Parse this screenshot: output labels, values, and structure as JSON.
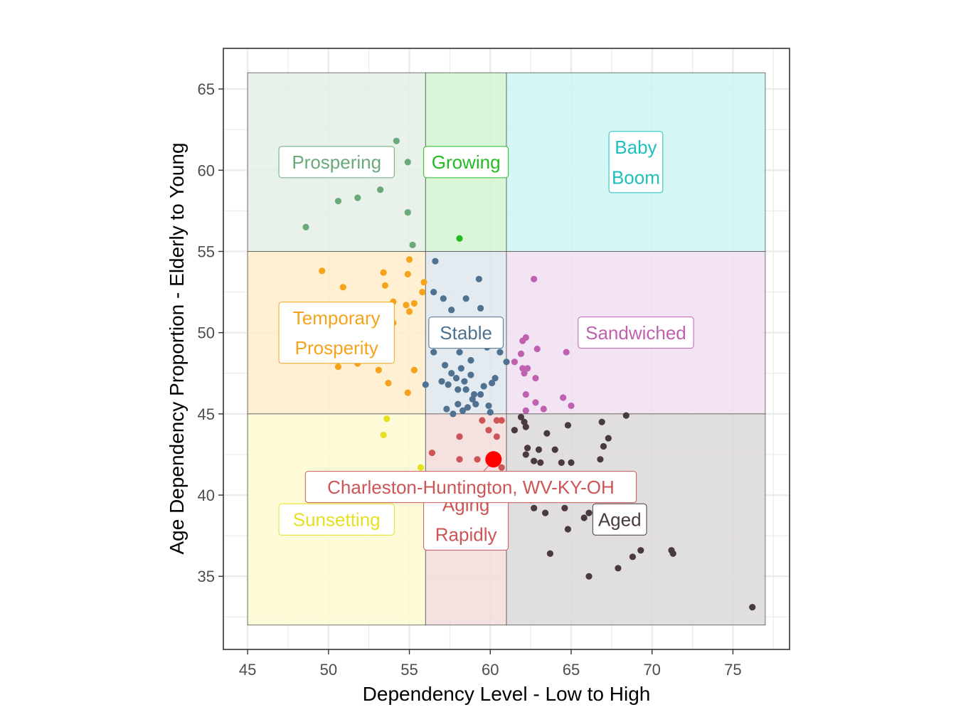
{
  "chart_data": {
    "type": "scatter",
    "title": "",
    "xlabel": "Dependency Level - Low to High",
    "ylabel": "Age Dependency Proportion - Elderly to Young",
    "xlim": [
      43.5,
      78.5
    ],
    "ylim": [
      30.5,
      67.5
    ],
    "x_ticks": [
      45,
      50,
      55,
      60,
      65,
      70,
      75
    ],
    "y_ticks": [
      35,
      40,
      45,
      50,
      55,
      60,
      65
    ],
    "grid": true,
    "legend": "none",
    "zones": [
      {
        "name": "Prospering",
        "lines": [
          "Prospering"
        ],
        "x": [
          45,
          56
        ],
        "y": [
          55,
          66
        ],
        "color": "#6aaa7a",
        "label_at": [
          50.5,
          60.5
        ]
      },
      {
        "name": "Growing",
        "lines": [
          "Growing"
        ],
        "x": [
          56,
          61
        ],
        "y": [
          55,
          66
        ],
        "color": "#22bb22",
        "label_at": [
          58.5,
          60.5
        ]
      },
      {
        "name": "Baby Boom",
        "lines": [
          "Baby",
          "Boom"
        ],
        "x": [
          61,
          77
        ],
        "y": [
          55,
          66
        ],
        "color": "#1fbfbf",
        "label_at": [
          69,
          60.5
        ]
      },
      {
        "name": "Temporary Prosperity",
        "lines": [
          "Temporary",
          "Prosperity"
        ],
        "x": [
          45,
          56
        ],
        "y": [
          45,
          55
        ],
        "color": "#f5a31c",
        "label_at": [
          50.5,
          50
        ]
      },
      {
        "name": "Stable",
        "lines": [
          "Stable"
        ],
        "x": [
          56,
          61
        ],
        "y": [
          45,
          55
        ],
        "color": "#4e7290",
        "label_at": [
          58.5,
          50
        ]
      },
      {
        "name": "Sandwiched",
        "lines": [
          "Sandwiched"
        ],
        "x": [
          61,
          77
        ],
        "y": [
          45,
          55
        ],
        "color": "#c060b0",
        "label_at": [
          69,
          50
        ]
      },
      {
        "name": "Sunsetting",
        "lines": [
          "Sunsetting"
        ],
        "x": [
          45,
          56
        ],
        "y": [
          32,
          45
        ],
        "color": "#e6e020",
        "label_at": [
          50.5,
          38.5
        ]
      },
      {
        "name": "Aging Rapidly",
        "lines": [
          "Aging",
          "Rapidly"
        ],
        "x": [
          56,
          61
        ],
        "y": [
          32,
          45
        ],
        "color": "#cc5555",
        "label_at": [
          58.5,
          38.5
        ]
      },
      {
        "name": "Aged",
        "lines": [
          "Aged"
        ],
        "x": [
          61,
          77
        ],
        "y": [
          32,
          45
        ],
        "color": "#4a3a3f",
        "label_at": [
          68,
          38.5
        ]
      }
    ],
    "fill_colors": {
      "Prospering": "#e4efe6",
      "Growing": "#d4f5d1",
      "Baby Boom": "#cdf4f2",
      "Temporary Prosperity": "#ffeccb",
      "Stable": "#dee6ed",
      "Sandwiched": "#f0dff0",
      "Sunsetting": "#fdfad1",
      "Aging Rapidly": "#f4dcdc",
      "Aged": "#dcd8d9"
    },
    "highlight": {
      "label": "Charleston-Huntington, WV-KY-OH",
      "x": 60.2,
      "y": 42.2,
      "color": "#ff0000",
      "label_color": "#cc5555",
      "label_at": [
        58.8,
        40.5
      ]
    },
    "series": [
      {
        "zone": "Prospering",
        "color": "#6aaa7a",
        "points": [
          [
            48.6,
            56.5
          ],
          [
            50.6,
            58.1
          ],
          [
            51.8,
            58.3
          ],
          [
            53.2,
            58.8
          ],
          [
            54.2,
            61.8
          ],
          [
            54.9,
            60.5
          ],
          [
            54.9,
            57.4
          ],
          [
            55.2,
            55.4
          ]
        ]
      },
      {
        "zone": "Growing",
        "color": "#22bb22",
        "points": [
          [
            58.1,
            55.8
          ]
        ]
      },
      {
        "zone": "Temporary Prosperity",
        "color": "#f5a31c",
        "points": [
          [
            49.6,
            53.8
          ],
          [
            50.9,
            52.8
          ],
          [
            53.4,
            53.7
          ],
          [
            53.5,
            52.9
          ],
          [
            54.0,
            51.9
          ],
          [
            54.0,
            50.6
          ],
          [
            54.9,
            53.6
          ],
          [
            55.0,
            54.5
          ],
          [
            54.8,
            51.7
          ],
          [
            55.3,
            51.8
          ],
          [
            55.0,
            51.3
          ],
          [
            55.9,
            53.1
          ],
          [
            55.8,
            52.5
          ],
          [
            53.8,
            50.8
          ],
          [
            50.6,
            47.9
          ],
          [
            51.8,
            48.1
          ],
          [
            53.1,
            47.7
          ],
          [
            53.7,
            46.9
          ],
          [
            55.3,
            47.7
          ],
          [
            54.9,
            46.3
          ]
        ]
      },
      {
        "zone": "Stable",
        "color": "#4e7290",
        "points": [
          [
            56.6,
            54.4
          ],
          [
            56.5,
            52.5
          ],
          [
            57.1,
            52.1
          ],
          [
            57.6,
            51.4
          ],
          [
            58.5,
            52.1
          ],
          [
            59.3,
            53.3
          ],
          [
            59.4,
            51.5
          ],
          [
            56.8,
            49.6
          ],
          [
            56.5,
            48.8
          ],
          [
            57.2,
            48.0
          ],
          [
            57.6,
            47.5
          ],
          [
            58.1,
            48.8
          ],
          [
            58.8,
            48.3
          ],
          [
            58.2,
            47.8
          ],
          [
            57.9,
            47.2
          ],
          [
            58.4,
            47.0
          ],
          [
            57.4,
            46.8
          ],
          [
            58.0,
            46.5
          ],
          [
            58.8,
            47.4
          ],
          [
            59.6,
            46.7
          ],
          [
            60.3,
            47.2
          ],
          [
            61.0,
            48.2
          ],
          [
            60.6,
            48.8
          ],
          [
            59.8,
            49.1
          ],
          [
            58.9,
            45.9
          ],
          [
            57.3,
            45.3
          ],
          [
            57.7,
            45.0
          ],
          [
            58.3,
            45.2
          ],
          [
            59.1,
            45.6
          ],
          [
            59.9,
            45.5
          ],
          [
            60.0,
            45.1
          ],
          [
            59.4,
            46.2
          ],
          [
            60.1,
            46.9
          ],
          [
            56.0,
            46.8
          ],
          [
            58.5,
            46.5
          ],
          [
            59.0,
            46.2
          ],
          [
            58.0,
            45.6
          ],
          [
            57.0,
            47.0
          ],
          [
            58.6,
            45.4
          ]
        ]
      },
      {
        "zone": "Sandwiched",
        "color": "#c060b0",
        "points": [
          [
            62.7,
            53.3
          ],
          [
            62.0,
            49.5
          ],
          [
            62.2,
            49.7
          ],
          [
            62.9,
            49.0
          ],
          [
            64.7,
            48.8
          ],
          [
            61.9,
            48.7
          ],
          [
            61.5,
            48.2
          ],
          [
            62.0,
            47.8
          ],
          [
            62.3,
            47.8
          ],
          [
            62.1,
            47.5
          ],
          [
            62.8,
            47.2
          ],
          [
            62.2,
            46.2
          ],
          [
            62.8,
            45.7
          ],
          [
            63.3,
            45.3
          ],
          [
            64.5,
            46.0
          ],
          [
            65.0,
            45.5
          ],
          [
            62.2,
            45.2
          ]
        ]
      },
      {
        "zone": "Sunsetting",
        "color": "#e6e020",
        "points": [
          [
            53.6,
            44.7
          ],
          [
            53.4,
            43.7
          ],
          [
            55.7,
            41.7
          ]
        ]
      },
      {
        "zone": "Aging Rapidly",
        "color": "#cc5555",
        "points": [
          [
            59.5,
            44.6
          ],
          [
            60.4,
            44.6
          ],
          [
            59.9,
            44.0
          ],
          [
            60.7,
            44.6
          ],
          [
            58.1,
            43.6
          ],
          [
            60.4,
            43.6
          ],
          [
            56.4,
            42.6
          ],
          [
            58.1,
            42.2
          ],
          [
            59.2,
            42.2
          ],
          [
            60.7,
            41.7
          ]
        ]
      },
      {
        "zone": "Aged",
        "color": "#4a3a3f",
        "points": [
          [
            61.9,
            44.8
          ],
          [
            62.1,
            44.5
          ],
          [
            62.2,
            44.2
          ],
          [
            61.5,
            44.0
          ],
          [
            63.5,
            43.8
          ],
          [
            64.8,
            44.3
          ],
          [
            66.9,
            44.5
          ],
          [
            68.4,
            44.9
          ],
          [
            67.3,
            43.5
          ],
          [
            62.3,
            42.9
          ],
          [
            63.0,
            42.8
          ],
          [
            62.2,
            42.5
          ],
          [
            64.0,
            42.8
          ],
          [
            62.7,
            42.1
          ],
          [
            63.1,
            42.0
          ],
          [
            64.4,
            42.0
          ],
          [
            65.0,
            42.0
          ],
          [
            66.8,
            42.2
          ],
          [
            67.0,
            43.0
          ],
          [
            62.4,
            40.3
          ],
          [
            63.8,
            40.9
          ],
          [
            64.9,
            40.6
          ],
          [
            62.5,
            39.7
          ],
          [
            62.7,
            39.2
          ],
          [
            63.4,
            38.9
          ],
          [
            64.6,
            39.2
          ],
          [
            64.8,
            37.9
          ],
          [
            65.8,
            38.6
          ],
          [
            66.1,
            38.9
          ],
          [
            63.7,
            36.4
          ],
          [
            66.1,
            35.0
          ],
          [
            67.9,
            35.5
          ],
          [
            68.8,
            36.2
          ],
          [
            69.3,
            36.6
          ],
          [
            71.2,
            36.6
          ],
          [
            71.3,
            36.4
          ],
          [
            76.2,
            33.1
          ]
        ]
      }
    ]
  }
}
